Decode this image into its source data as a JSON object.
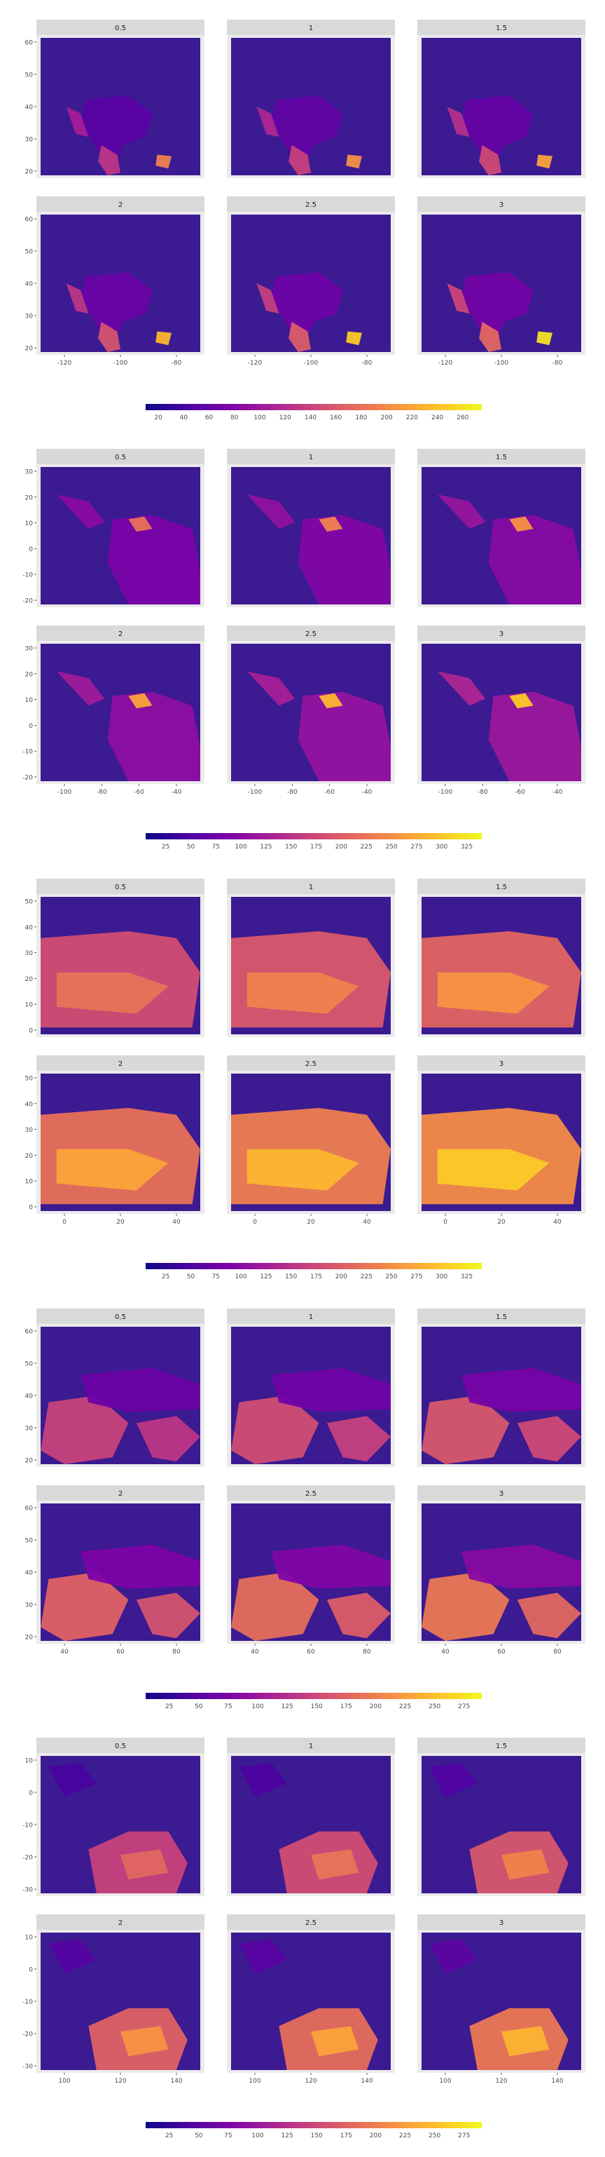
{
  "colors": {
    "panel_bg": "#ebebeb",
    "strip_bg": "#d9d9d9",
    "grid": "#ffffff",
    "tick_text": "#4d4d4d",
    "strip_text": "#1a1a1a",
    "ocean": "#3c1a91",
    "palette": [
      "#0d0887",
      "#4b03a1",
      "#7d03a8",
      "#a82296",
      "#cb4679",
      "#e56b5d",
      "#f89441",
      "#fdc328",
      "#f0f921"
    ]
  },
  "chart_data": [
    {
      "type": "heatmap",
      "region": "north-america",
      "facets": [
        "0.5",
        "1",
        "1.5",
        "2",
        "2.5",
        "3"
      ],
      "facet_layout": "3 columns x 2 rows",
      "x_ticks": [
        "-120",
        "-100",
        "-80"
      ],
      "y_ticks": [
        "60",
        "50",
        "40",
        "30",
        "20"
      ],
      "legend": {
        "position": "bottom",
        "ticks": [
          "20",
          "40",
          "60",
          "80",
          "100",
          "120",
          "140",
          "160",
          "180",
          "200",
          "220",
          "240",
          "260"
        ],
        "range": [
          10,
          275
        ]
      },
      "values_description_scale": [
        0.5,
        1,
        1.5,
        2,
        2.5,
        3
      ]
    },
    {
      "type": "heatmap",
      "region": "south-america",
      "facets": [
        "0.5",
        "1",
        "1.5",
        "2",
        "2.5",
        "3"
      ],
      "facet_layout": "3 columns x 2 rows",
      "x_ticks": [
        "-100",
        "-80",
        "-60",
        "-40"
      ],
      "y_ticks": [
        "30",
        "20",
        "10",
        "0",
        "-10",
        "-20"
      ],
      "legend": {
        "position": "bottom",
        "ticks": [
          "25",
          "50",
          "75",
          "100",
          "125",
          "150",
          "175",
          "200",
          "225",
          "250",
          "275",
          "300",
          "325"
        ],
        "range": [
          5,
          340
        ]
      },
      "values_description_scale": [
        0.5,
        1,
        1.5,
        2,
        2.5,
        3
      ]
    },
    {
      "type": "heatmap",
      "region": "north-africa",
      "facets": [
        "0.5",
        "1",
        "1.5",
        "2",
        "2.5",
        "3"
      ],
      "facet_layout": "3 columns x 2 rows",
      "x_ticks": [
        "0",
        "20",
        "40"
      ],
      "y_ticks": [
        "50",
        "40",
        "30",
        "20",
        "10",
        "0"
      ],
      "legend": {
        "position": "bottom",
        "ticks": [
          "25",
          "50",
          "75",
          "100",
          "125",
          "150",
          "175",
          "200",
          "225",
          "250",
          "275",
          "300",
          "325"
        ],
        "range": [
          5,
          340
        ]
      },
      "values_description_scale": [
        0.5,
        1,
        1.5,
        2,
        2.5,
        3
      ]
    },
    {
      "type": "heatmap",
      "region": "middle-east",
      "facets": [
        "0.5",
        "1",
        "1.5",
        "2",
        "2.5",
        "3"
      ],
      "facet_layout": "3 columns x 2 rows",
      "x_ticks": [
        "40",
        "60",
        "80"
      ],
      "y_ticks": [
        "60",
        "50",
        "40",
        "30",
        "20"
      ],
      "legend": {
        "position": "bottom",
        "ticks": [
          "25",
          "50",
          "75",
          "100",
          "125",
          "150",
          "175",
          "200",
          "225",
          "250",
          "275"
        ],
        "range": [
          5,
          290
        ]
      },
      "values_description_scale": [
        0.5,
        1,
        1.5,
        2,
        2.5,
        3
      ]
    },
    {
      "type": "heatmap",
      "region": "australia",
      "facets": [
        "0.5",
        "1",
        "1.5",
        "2",
        "2.5",
        "3"
      ],
      "facet_layout": "3 columns x 2 rows",
      "x_ticks": [
        "100",
        "120",
        "140"
      ],
      "y_ticks": [
        "10",
        "0",
        "-10",
        "-20",
        "-30"
      ],
      "legend": {
        "position": "bottom",
        "ticks": [
          "25",
          "50",
          "75",
          "100",
          "125",
          "150",
          "175",
          "200",
          "225",
          "250",
          "275"
        ],
        "range": [
          5,
          290
        ]
      },
      "values_description_scale": [
        0.5,
        1,
        1.5,
        2,
        2.5,
        3
      ]
    }
  ]
}
